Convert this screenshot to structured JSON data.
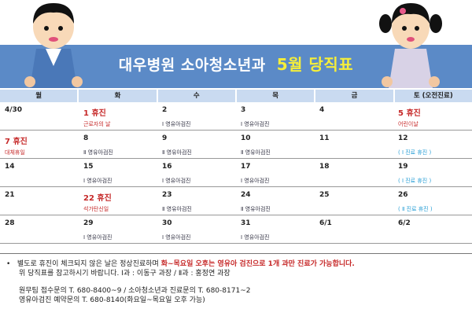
{
  "title": {
    "main": "대우병원 소아청소년과",
    "highlight": "5월 당직표"
  },
  "weekdays": [
    "월",
    "화",
    "수",
    "목",
    "금",
    "토 (오전진료)"
  ],
  "weeks": [
    [
      {
        "d": "4/30"
      },
      {
        "d": "1 휴진",
        "red": true,
        "n": "근로자의 날",
        "nc": "red"
      },
      {
        "d": "2",
        "n": "Ⅰ 영유아검진"
      },
      {
        "d": "3",
        "n": "Ⅰ 영유아검진"
      },
      {
        "d": "4"
      },
      {
        "d": "5 휴진",
        "red": true,
        "n": "어린이날",
        "nc": "red"
      }
    ],
    [
      {
        "d": "7 휴진",
        "red": true,
        "n": "대체휴일",
        "nc": "red"
      },
      {
        "d": "8",
        "n": "Ⅱ 영유아검진"
      },
      {
        "d": "9",
        "n": "Ⅱ 영유아검진"
      },
      {
        "d": "10",
        "n": "Ⅱ 영유아검진"
      },
      {
        "d": "11"
      },
      {
        "d": "12",
        "n": "( Ⅰ 진료 휴진 )",
        "nc": "cyan"
      }
    ],
    [
      {
        "d": "14"
      },
      {
        "d": "15",
        "n": "Ⅰ 영유아검진"
      },
      {
        "d": "16",
        "n": "Ⅰ 영유아검진"
      },
      {
        "d": "17",
        "n": "Ⅰ 영유아검진"
      },
      {
        "d": "18"
      },
      {
        "d": "19",
        "n": "( Ⅰ 진료 휴진 )",
        "nc": "cyan"
      }
    ],
    [
      {
        "d": "21"
      },
      {
        "d": "22 휴진",
        "red": true,
        "n": "석가탄신일",
        "nc": "red"
      },
      {
        "d": "23",
        "n": "Ⅱ 영유아검진"
      },
      {
        "d": "24",
        "n": "Ⅱ 영유아검진"
      },
      {
        "d": "25"
      },
      {
        "d": "26",
        "n": "( Ⅱ 진료 휴진 )",
        "nc": "cyan"
      }
    ],
    [
      {
        "d": "28"
      },
      {
        "d": "29",
        "n": "Ⅰ 영유아검진"
      },
      {
        "d": "30",
        "n": "Ⅰ 영유아검진"
      },
      {
        "d": "31",
        "n": "Ⅰ 영유아검진"
      },
      {
        "d": "6/1"
      },
      {
        "d": "6/2"
      }
    ]
  ],
  "footer": {
    "bullet": "•",
    "line1a": "별도로 휴진이 체크되지 않은 날은 정상진료하며 ",
    "line1b": "화~목요일 오후는 영유아 검진으로 1개 과만 진료가 가능합니다.",
    "line2": "위 당직표를 참고하시기 바랍니다.   Ⅰ과 : 이동구 과장  /  Ⅱ과 : 홍정연 과장",
    "line3": "원무팀 접수문의 T. 680-8400~9    /   소아청소년과 진료문의 T. 680-8171~2",
    "line4": "영유아검진 예약문의 T. 680-8140(화요일~목요일 오후 가능)"
  },
  "colors": {
    "banner": "#5b8ac7",
    "highlight": "#f5ee3a",
    "holiday": "#c62828",
    "closed": "#2a9fd6"
  }
}
